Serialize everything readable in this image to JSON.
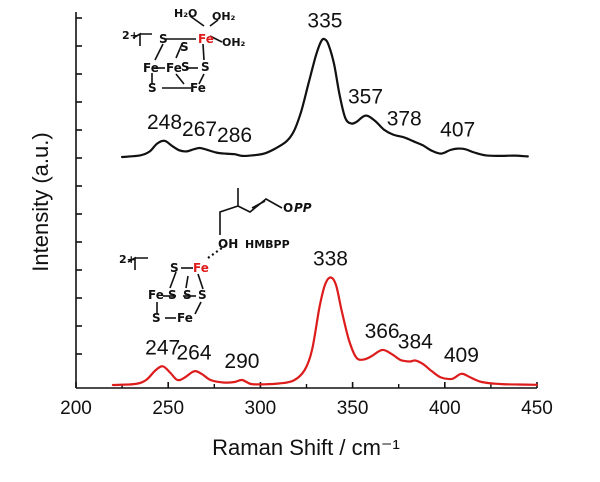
{
  "chart_data": {
    "type": "line",
    "title": "",
    "xlabel": "Raman Shift / cm⁻¹",
    "ylabel": "Intensity (a.u.)",
    "xlim": [
      200,
      450
    ],
    "x_ticks": [
      "200",
      "250",
      "300",
      "350",
      "400",
      "450"
    ],
    "grid": false,
    "colors": {
      "top": "#111111",
      "bottom": "#dd1c1c",
      "fe_label": "#e01b1b"
    },
    "series": [
      {
        "curve": "top",
        "x": [
          225,
          235,
          240,
          244,
          248,
          252,
          256,
          260,
          264,
          267,
          270,
          276,
          281,
          286,
          290,
          296,
          302,
          308,
          314,
          318,
          322,
          326,
          330,
          333,
          335,
          337,
          340,
          343,
          346,
          349,
          352,
          357,
          362,
          367,
          372,
          378,
          383,
          388,
          393,
          398,
          403,
          407,
          411,
          416,
          422,
          430,
          438,
          445
        ],
        "y": [
          0,
          0.006,
          0.02,
          0.048,
          0.058,
          0.04,
          0.024,
          0.02,
          0.028,
          0.032,
          0.028,
          0.016,
          0.012,
          0.01,
          0.004,
          0.006,
          0.012,
          0.03,
          0.055,
          0.09,
          0.16,
          0.26,
          0.36,
          0.414,
          0.42,
          0.4,
          0.33,
          0.22,
          0.14,
          0.12,
          0.125,
          0.148,
          0.13,
          0.098,
          0.08,
          0.07,
          0.056,
          0.042,
          0.022,
          0.012,
          0.025,
          0.03,
          0.028,
          0.016,
          0.006,
          0.004,
          0.005,
          0.002
        ],
        "peak_labels": [
          {
            "x": 248,
            "label": "248"
          },
          {
            "x": 267,
            "label": "267"
          },
          {
            "x": 286,
            "label": "286"
          },
          {
            "x": 335,
            "label": "335"
          },
          {
            "x": 357,
            "label": "357"
          },
          {
            "x": 378,
            "label": "378"
          },
          {
            "x": 407,
            "label": "407"
          }
        ]
      },
      {
        "curve": "bottom",
        "x": [
          220,
          232,
          238,
          243,
          247,
          251,
          255,
          259,
          264,
          268,
          273,
          280,
          286,
          290,
          295,
          302,
          310,
          318,
          324,
          328,
          332,
          335,
          338,
          341,
          344,
          348,
          352,
          356,
          360,
          366,
          371,
          376,
          381,
          384,
          388,
          393,
          398,
          404,
          409,
          414,
          420,
          430,
          440,
          450
        ],
        "y": [
          0,
          0.004,
          0.02,
          0.058,
          0.075,
          0.05,
          0.02,
          0.03,
          0.055,
          0.045,
          0.02,
          0.01,
          0.012,
          0.02,
          0.004,
          0.003,
          0.006,
          0.018,
          0.06,
          0.14,
          0.31,
          0.4,
          0.43,
          0.4,
          0.3,
          0.18,
          0.11,
          0.102,
          0.114,
          0.14,
          0.125,
          0.1,
          0.094,
          0.098,
          0.085,
          0.055,
          0.03,
          0.025,
          0.045,
          0.03,
          0.012,
          0.004,
          0.002,
          0.001
        ],
        "peak_labels": [
          {
            "x": 247,
            "label": "247"
          },
          {
            "x": 264,
            "label": "264"
          },
          {
            "x": 290,
            "label": "290"
          },
          {
            "x": 338,
            "label": "338"
          },
          {
            "x": 366,
            "label": "366"
          },
          {
            "x": 384,
            "label": "384"
          },
          {
            "x": 409,
            "label": "409"
          }
        ]
      }
    ]
  },
  "structures": {
    "top": {
      "charge": "2+",
      "atoms": {
        "h2o_left": "H₂O",
        "oh2_right": "OH₂",
        "oh2_lower": "OH₂",
        "fe_labile": "Fe",
        "fe": "Fe",
        "s": "S"
      }
    },
    "bottom": {
      "charge": "2+",
      "substrate": "HMBPP",
      "atoms": {
        "opp_o": "O",
        "opp_p": "PP",
        "oh": "OH",
        "fe_labile": "Fe",
        "fe": "Fe",
        "s": "S"
      }
    }
  }
}
